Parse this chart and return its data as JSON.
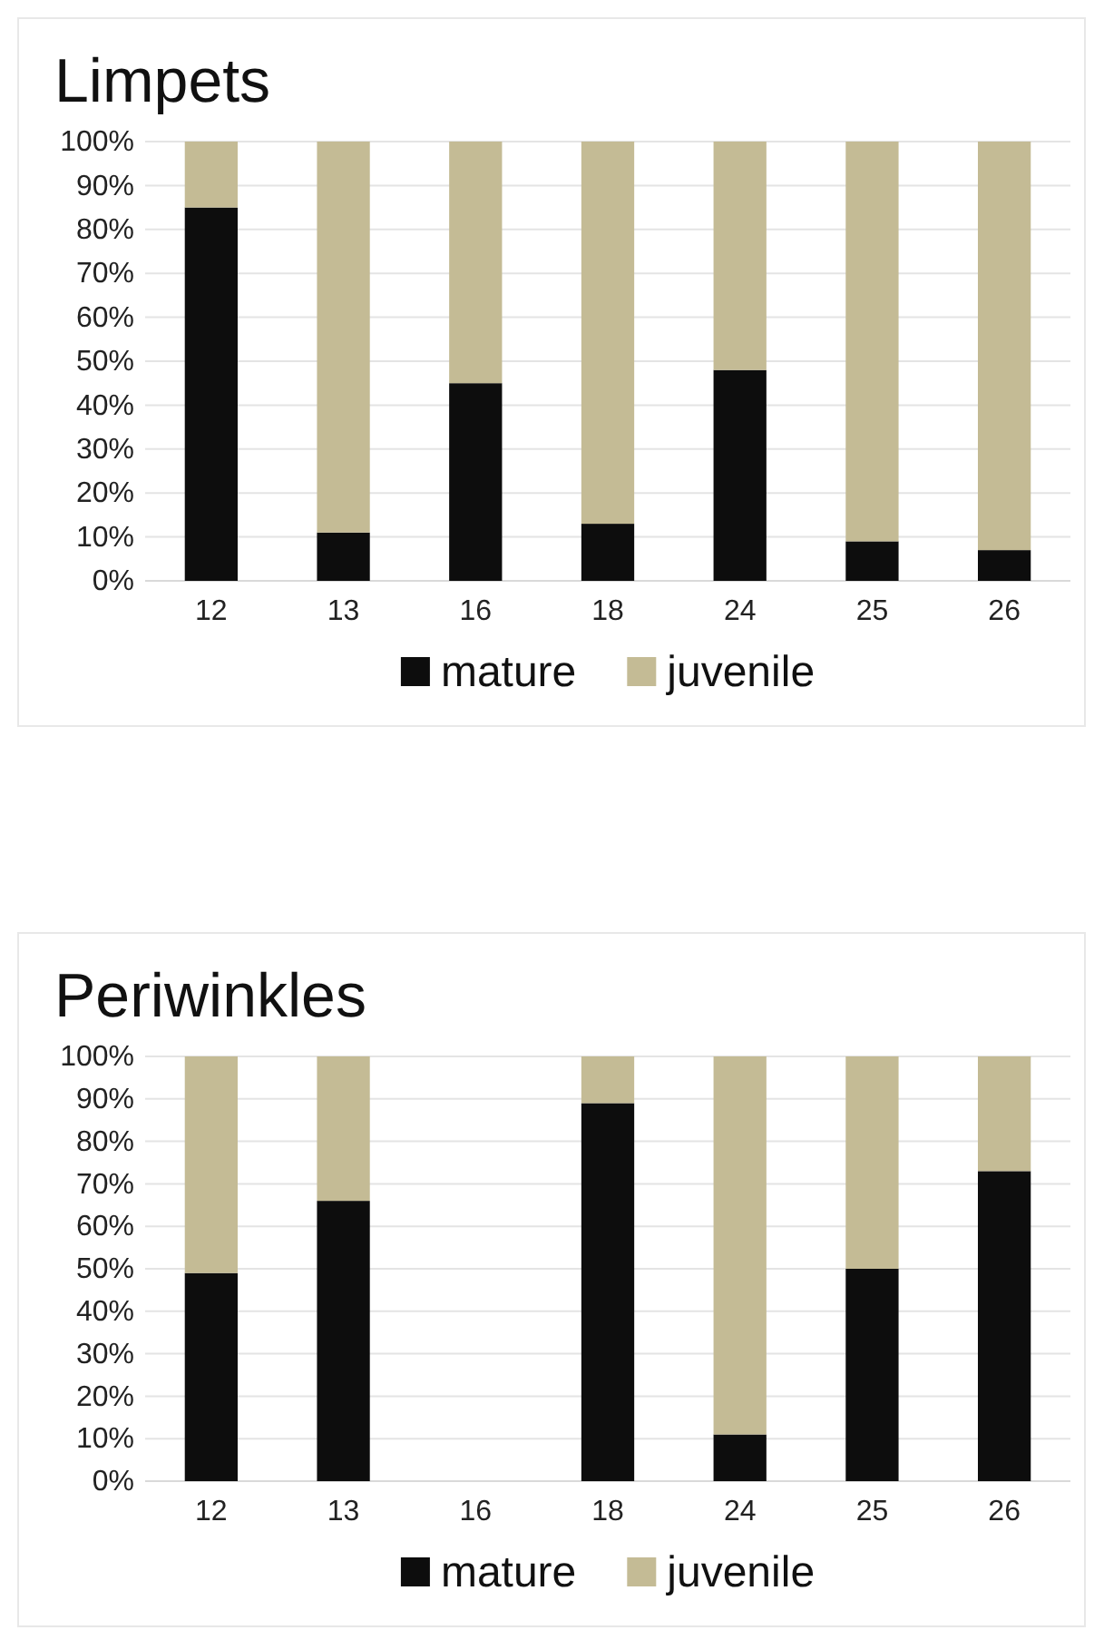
{
  "chart_data": [
    {
      "type": "bar",
      "title": "Limpets",
      "categories": [
        "12",
        "13",
        "16",
        "18",
        "24",
        "25",
        "26"
      ],
      "stacked": true,
      "series": [
        {
          "name": "mature",
          "color": "#0d0d0d",
          "values": [
            85,
            11,
            45,
            13,
            48,
            9,
            7
          ]
        },
        {
          "name": "juvenile",
          "color": "#c4bb95",
          "values": [
            15,
            89,
            55,
            87,
            52,
            91,
            93
          ]
        }
      ],
      "ylim": [
        0,
        100
      ],
      "yticks": [
        {
          "value": 0,
          "label": "0%"
        },
        {
          "value": 10,
          "label": "10%"
        },
        {
          "value": 20,
          "label": "20%"
        },
        {
          "value": 30,
          "label": "30%"
        },
        {
          "value": 40,
          "label": "40%"
        },
        {
          "value": 50,
          "label": "50%"
        },
        {
          "value": 60,
          "label": "60%"
        },
        {
          "value": 70,
          "label": "70%"
        },
        {
          "value": 80,
          "label": "80%"
        },
        {
          "value": 90,
          "label": "90%"
        },
        {
          "value": 100,
          "label": "100%"
        }
      ],
      "grid": "y",
      "legend": "bottom"
    },
    {
      "type": "bar",
      "title": "Periwinkles",
      "categories": [
        "12",
        "13",
        "16",
        "18",
        "24",
        "25",
        "26"
      ],
      "stacked": true,
      "series": [
        {
          "name": "mature",
          "color": "#0d0d0d",
          "values": [
            49,
            66,
            null,
            89,
            11,
            50,
            73
          ]
        },
        {
          "name": "juvenile",
          "color": "#c4bb95",
          "values": [
            51,
            34,
            null,
            11,
            89,
            50,
            27
          ]
        }
      ],
      "ylim": [
        0,
        100
      ],
      "yticks": [
        {
          "value": 0,
          "label": "0%"
        },
        {
          "value": 10,
          "label": "10%"
        },
        {
          "value": 20,
          "label": "20%"
        },
        {
          "value": 30,
          "label": "30%"
        },
        {
          "value": 40,
          "label": "40%"
        },
        {
          "value": 50,
          "label": "50%"
        },
        {
          "value": 60,
          "label": "60%"
        },
        {
          "value": 70,
          "label": "70%"
        },
        {
          "value": 80,
          "label": "80%"
        },
        {
          "value": 90,
          "label": "90%"
        },
        {
          "value": 100,
          "label": "100%"
        }
      ],
      "grid": "y",
      "legend": "bottom"
    }
  ]
}
